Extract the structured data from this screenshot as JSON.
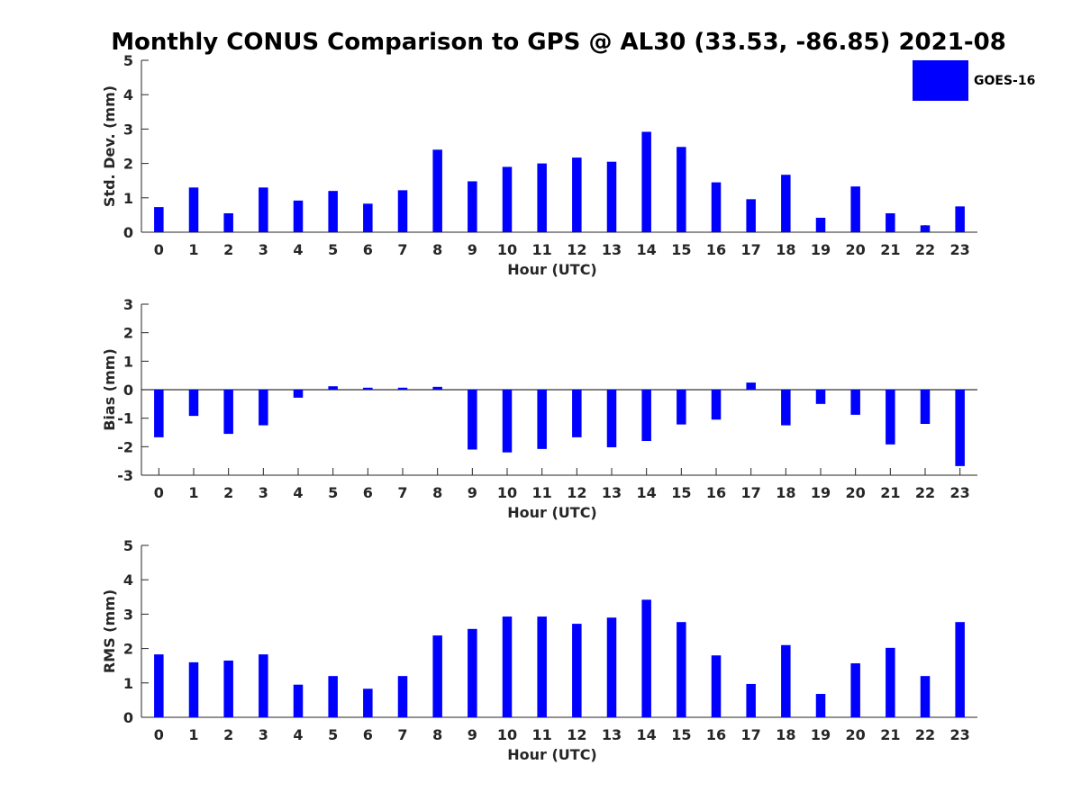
{
  "figure": {
    "title": "Monthly CONUS Comparison to GPS @ AL30 (33.53, -86.85) 2021-08"
  },
  "legend": {
    "label": "GOES-16",
    "color": "#0000ff",
    "placement": "top-right"
  },
  "chart_data": [
    {
      "type": "bar",
      "name": "std-dev",
      "xlabel": "Hour (UTC)",
      "ylabel": "Std. Dev. (mm)",
      "ylim": [
        0,
        5
      ],
      "yticks": [
        0,
        1,
        2,
        3,
        4,
        5
      ],
      "grid": false,
      "categories": [
        "0",
        "1",
        "2",
        "3",
        "4",
        "5",
        "6",
        "7",
        "8",
        "9",
        "10",
        "11",
        "12",
        "13",
        "14",
        "15",
        "16",
        "17",
        "18",
        "19",
        "20",
        "21",
        "22",
        "23"
      ],
      "series": [
        {
          "name": "GOES-16",
          "color": "#0000ff",
          "values": [
            0.73,
            1.3,
            0.55,
            1.3,
            0.92,
            1.2,
            0.83,
            1.22,
            2.4,
            1.48,
            1.9,
            2.0,
            2.17,
            2.05,
            2.92,
            2.48,
            1.45,
            0.96,
            1.67,
            0.42,
            1.33,
            0.55,
            0.2,
            0.75
          ]
        }
      ]
    },
    {
      "type": "bar",
      "name": "bias",
      "xlabel": "Hour (UTC)",
      "ylabel": "Bias (mm)",
      "ylim": [
        -3,
        3
      ],
      "yticks": [
        -3,
        -2,
        -1,
        0,
        1,
        2,
        3
      ],
      "grid": false,
      "categories": [
        "0",
        "1",
        "2",
        "3",
        "4",
        "5",
        "6",
        "7",
        "8",
        "9",
        "10",
        "11",
        "12",
        "13",
        "14",
        "15",
        "16",
        "17",
        "18",
        "19",
        "20",
        "21",
        "22",
        "23"
      ],
      "series": [
        {
          "name": "GOES-16",
          "color": "#0000ff",
          "values": [
            -1.67,
            -0.92,
            -1.55,
            -1.25,
            -0.28,
            0.12,
            0.07,
            0.07,
            0.1,
            -2.1,
            -2.2,
            -2.08,
            -1.67,
            -2.02,
            -1.8,
            -1.22,
            -1.05,
            0.25,
            -1.25,
            -0.5,
            -0.88,
            -1.92,
            -1.2,
            -2.68
          ]
        }
      ]
    },
    {
      "type": "bar",
      "name": "rms",
      "xlabel": "Hour (UTC)",
      "ylabel": "RMS (mm)",
      "ylim": [
        0,
        5
      ],
      "yticks": [
        0,
        1,
        2,
        3,
        4,
        5
      ],
      "grid": false,
      "categories": [
        "0",
        "1",
        "2",
        "3",
        "4",
        "5",
        "6",
        "7",
        "8",
        "9",
        "10",
        "11",
        "12",
        "13",
        "14",
        "15",
        "16",
        "17",
        "18",
        "19",
        "20",
        "21",
        "22",
        "23"
      ],
      "series": [
        {
          "name": "GOES-16",
          "color": "#0000ff",
          "values": [
            1.83,
            1.6,
            1.65,
            1.83,
            0.95,
            1.2,
            0.83,
            1.2,
            2.38,
            2.57,
            2.93,
            2.93,
            2.72,
            2.9,
            3.42,
            2.77,
            1.8,
            0.97,
            2.1,
            0.68,
            1.57,
            2.02,
            1.2,
            2.77
          ]
        }
      ]
    }
  ]
}
